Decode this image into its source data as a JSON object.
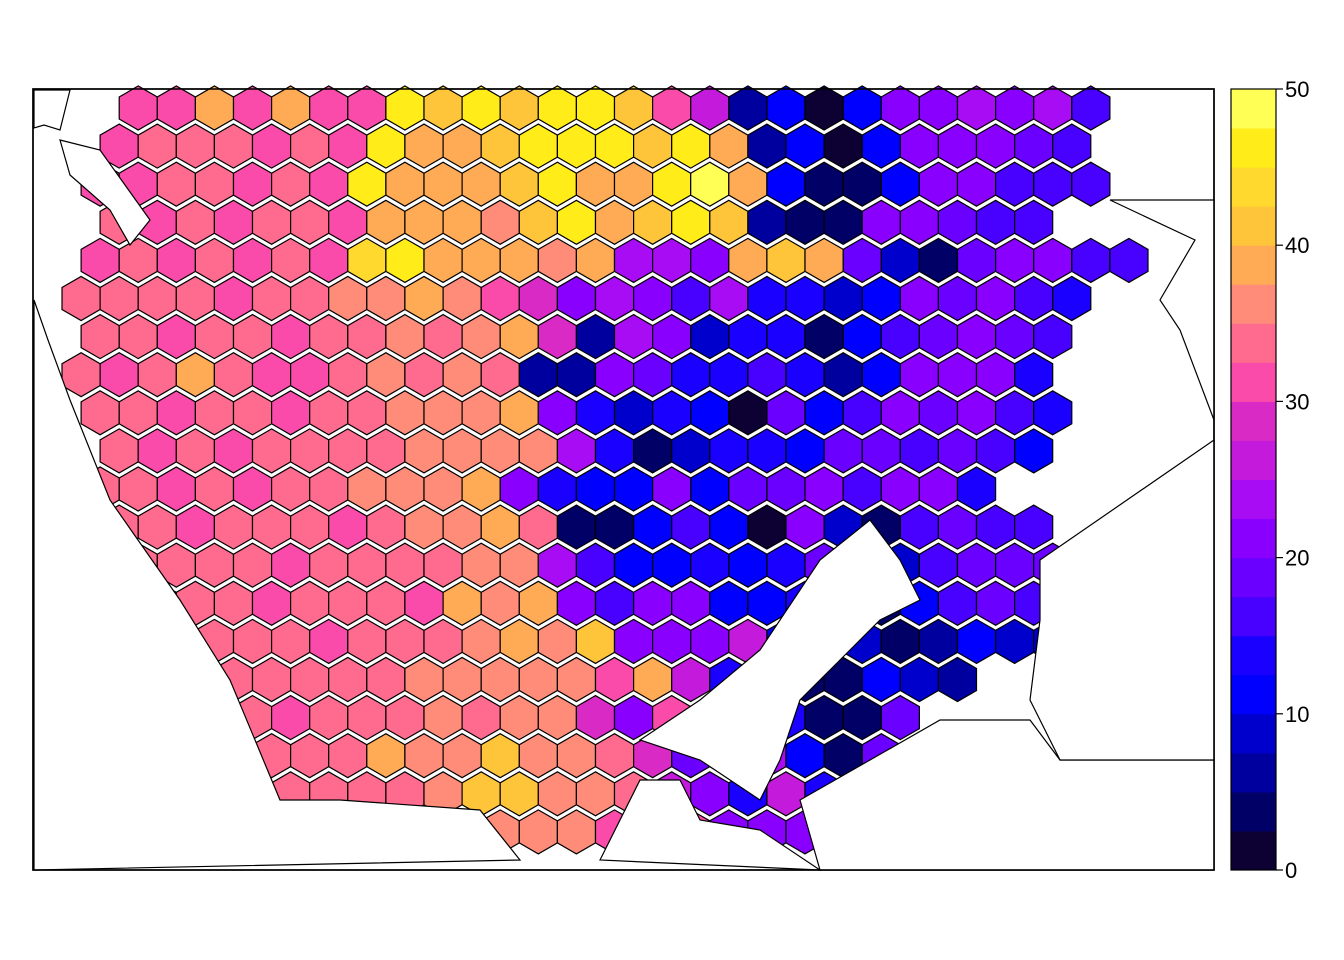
{
  "map": {
    "hex_rows": [
      "BBBBBBBBBBBBBBBBBBBBBBBBBBBBBBBBBBBBBBB",
      "-.....................................",
      "BBBBBBBBBBBBBBBBBBBBBBBBBBBBBBBBBBBBBBB"
    ],
    "grid_values": [
      [
        31,
        31,
        39,
        31,
        39,
        31,
        31,
        45,
        41,
        47,
        41,
        45,
        45,
        41,
        31,
        25,
        6,
        12,
        0,
        12,
        21,
        21,
        23,
        21,
        23,
        15
      ],
      [
        31,
        34,
        34,
        34,
        31,
        34,
        31,
        47,
        39,
        39,
        41,
        45,
        47,
        45,
        41,
        45,
        39,
        6,
        10,
        2,
        10,
        21,
        21,
        20,
        18,
        15
      ],
      [
        31,
        31,
        34,
        34,
        31,
        34,
        31,
        45,
        39,
        39,
        39,
        41,
        45,
        39,
        39,
        45,
        49,
        39,
        12,
        4,
        3,
        12,
        21,
        21,
        17,
        15,
        15
      ],
      [
        34,
        31,
        34,
        31,
        34,
        34,
        31,
        39,
        39,
        38,
        37,
        41,
        45,
        39,
        41,
        45,
        41,
        6,
        4,
        3,
        21,
        21,
        19,
        17,
        15
      ],
      [
        31,
        34,
        31,
        34,
        31,
        34,
        31,
        43,
        47,
        39,
        39,
        38,
        36,
        38,
        23,
        23,
        21,
        39,
        41,
        39,
        19,
        8,
        3,
        19,
        21,
        20,
        17,
        15
      ],
      [
        34,
        34,
        34,
        34,
        31,
        34,
        34,
        36,
        36,
        38,
        36,
        31,
        28,
        22,
        23,
        20,
        16,
        24,
        14,
        14,
        8,
        10,
        21,
        19,
        20,
        17,
        14
      ],
      [
        34,
        34,
        31,
        34,
        34,
        31,
        34,
        34,
        36,
        34,
        36,
        38,
        28,
        6,
        23,
        20,
        8,
        14,
        14,
        4,
        12,
        15,
        19,
        20,
        18,
        15
      ],
      [
        34,
        31,
        34,
        38,
        34,
        31,
        31,
        34,
        36,
        34,
        36,
        34,
        6,
        6,
        21,
        19,
        14,
        14,
        16,
        14,
        6,
        10,
        20,
        21,
        20,
        14
      ],
      [
        34,
        34,
        31,
        34,
        34,
        31,
        34,
        34,
        36,
        36,
        36,
        38,
        22,
        14,
        8,
        14,
        11,
        2,
        18,
        12,
        15,
        21,
        19,
        20,
        16,
        14
      ],
      [
        34,
        31,
        34,
        31,
        34,
        34,
        34,
        34,
        36,
        36,
        36,
        36,
        24,
        14,
        4,
        8,
        14,
        14,
        10,
        19,
        19,
        17,
        19,
        15,
        12
      ],
      [
        34,
        34,
        31,
        34,
        31,
        34,
        34,
        36,
        36,
        36,
        38,
        22,
        14,
        10,
        12,
        21,
        10,
        19,
        18,
        21,
        17,
        21,
        20,
        14
      ],
      [
        34,
        34,
        31,
        34,
        34,
        34,
        31,
        34,
        36,
        36,
        38,
        34,
        4,
        4,
        12,
        16,
        12,
        0,
        21,
        8,
        4,
        15,
        19,
        17,
        15
      ],
      [
        34,
        34,
        34,
        34,
        31,
        34,
        34,
        34,
        34,
        36,
        36,
        24,
        16,
        12,
        10,
        13,
        10,
        14,
        19,
        8,
        8,
        17,
        19,
        19,
        19
      ],
      [
        34,
        34,
        34,
        31,
        34,
        34,
        34,
        31,
        38,
        36,
        38,
        22,
        17,
        21,
        22,
        12,
        12,
        14,
        8,
        4,
        10,
        15,
        19,
        17
      ],
      [
        34,
        34,
        34,
        34,
        31,
        34,
        34,
        34,
        36,
        38,
        36,
        40,
        22,
        20,
        22,
        27,
        12,
        14,
        8,
        4,
        6,
        12,
        8,
        8
      ],
      [
        34,
        34,
        34,
        34,
        34,
        34,
        34,
        36,
        36,
        36,
        36,
        36,
        31,
        38,
        27,
        14,
        8,
        4,
        4,
        12,
        8,
        6
      ],
      [
        34,
        34,
        34,
        31,
        34,
        34,
        34,
        36,
        34,
        36,
        36,
        28,
        20,
        31,
        20,
        20,
        14,
        4,
        4,
        19
      ],
      [
        34,
        34,
        34,
        34,
        34,
        38,
        36,
        36,
        41,
        36,
        36,
        34,
        28,
        18,
        21,
        23,
        12,
        4,
        19,
        21,
        20
      ],
      [
        34,
        34,
        34,
        34,
        34,
        34,
        36,
        41,
        41,
        36,
        36,
        34,
        25,
        20,
        14,
        25,
        14,
        17,
        19,
        19
      ],
      [
        34,
        34,
        34,
        31,
        34,
        36,
        38,
        36,
        36,
        36,
        31,
        12,
        31,
        20,
        20,
        22,
        12,
        19,
        18,
        19,
        20
      ],
      [
        34,
        34,
        31,
        34,
        38,
        38,
        36,
        36,
        36,
        34,
        36,
        14,
        20,
        20,
        20,
        16,
        19,
        17,
        19
      ],
      [
        34,
        34,
        34,
        31,
        36,
        38,
        36,
        38,
        38,
        31,
        14,
        20,
        22,
        20,
        16,
        14,
        17,
        19
      ],
      [
        34,
        34,
        34,
        34,
        38,
        38,
        38,
        41,
        36,
        34,
        27,
        18,
        20,
        30,
        32,
        35
      ],
      [
        34,
        34,
        31,
        34,
        38,
        38,
        38,
        38,
        40,
        36,
        28,
        36,
        34,
        34
      ],
      [
        34,
        34,
        34,
        36,
        38,
        38,
        41,
        41,
        36,
        34,
        38,
        40,
        34
      ],
      [
        34,
        34,
        36,
        38,
        36,
        38,
        40,
        36,
        34
      ]
    ]
  },
  "legend": {
    "levels": [
      0,
      2.5,
      5,
      7.5,
      10,
      12.5,
      15,
      17.5,
      20,
      22.5,
      25,
      27.5,
      30,
      32.5,
      35,
      37.5,
      40,
      42.5,
      45,
      47.5,
      50
    ],
    "colors": [
      "#0D0033",
      "#000066",
      "#00009E",
      "#0000CD",
      "#0000FF",
      "#1A00FF",
      "#4800FF",
      "#6A00FF",
      "#8A00FF",
      "#A80CF5",
      "#C41ADB",
      "#D92AC6",
      "#FB4BAA",
      "#FF6B8E",
      "#FF8C78",
      "#FFAA55",
      "#FFC53A",
      "#FFD92E",
      "#FFEC18",
      "#FFFF55"
    ],
    "tick_labels": [
      "0",
      "10",
      "20",
      "30",
      "40",
      "50"
    ],
    "tick_values": [
      0,
      10,
      20,
      30,
      40,
      50
    ]
  }
}
